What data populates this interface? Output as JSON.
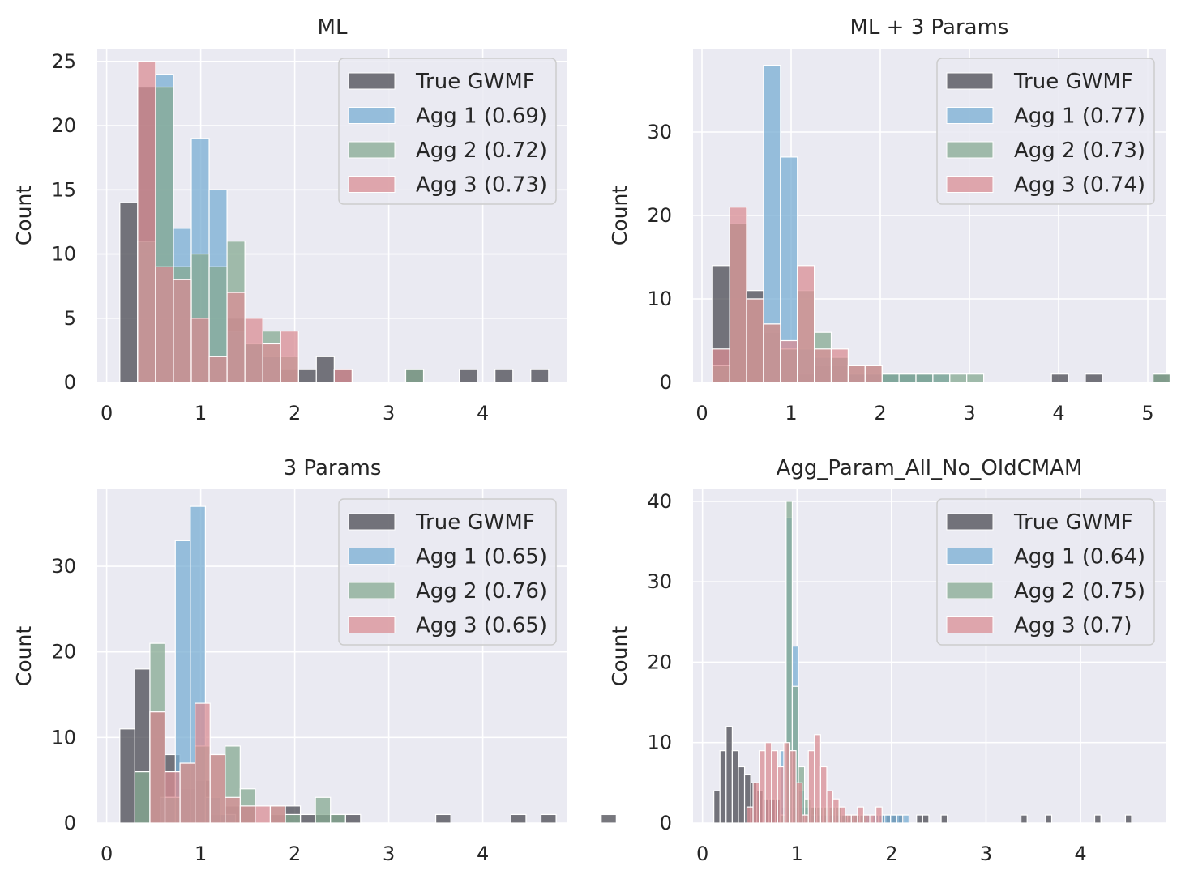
{
  "colors": {
    "plot_bg": "#eaeaf2",
    "grid": "#ffffff",
    "true_gwmf": "#4a4a52",
    "agg1": "#78aed3",
    "agg2": "#86a991",
    "agg3": "#d98e94"
  },
  "chart_data": [
    {
      "type": "bar",
      "title": "ML",
      "ylabel": "Count",
      "xlim": [
        -0.1,
        4.9
      ],
      "ylim": [
        0,
        26
      ],
      "xticks": [
        0,
        1,
        2,
        3,
        4
      ],
      "yticks": [
        0,
        5,
        10,
        15,
        20,
        25
      ],
      "legend_position": "top-right",
      "series": [
        {
          "name": "True GWMF",
          "color_key": "true_gwmf",
          "bin_start": 0.14,
          "bin_width": 0.19,
          "values": [
            14,
            23,
            9,
            8,
            5,
            2,
            5,
            3,
            2,
            1,
            1,
            2,
            1,
            0,
            0,
            0,
            1,
            0,
            0,
            1,
            0,
            1,
            0,
            1
          ]
        },
        {
          "name": "Agg 1 (0.69)",
          "color_key": "agg1",
          "bin_start": 0.33,
          "bin_width": 0.19,
          "values": [
            11,
            24,
            12,
            19,
            15,
            4,
            3,
            2
          ]
        },
        {
          "name": "Agg 2 (0.72)",
          "color_key": "agg2",
          "bin_start": 0.33,
          "bin_width": 0.19,
          "values": [
            11,
            23,
            9,
            10,
            9,
            11,
            3,
            4,
            2,
            0,
            0,
            0,
            0,
            0,
            0,
            1
          ]
        },
        {
          "name": "Agg 3 (0.73)",
          "color_key": "agg3",
          "bin_start": 0.33,
          "bin_width": 0.19,
          "values": [
            25,
            9,
            8,
            5,
            2,
            7,
            5,
            3,
            4,
            0,
            0,
            1
          ]
        }
      ]
    },
    {
      "type": "bar",
      "title": "ML + 3 Params",
      "ylabel": "Count",
      "xlim": [
        -0.1,
        5.2
      ],
      "ylim": [
        0,
        40
      ],
      "xticks": [
        0,
        1,
        2,
        3,
        4,
        5
      ],
      "yticks": [
        0,
        10,
        20,
        30
      ],
      "legend_position": "top-right",
      "series": [
        {
          "name": "True GWMF",
          "color_key": "true_gwmf",
          "bin_start": 0.12,
          "bin_width": 0.19,
          "values": [
            14,
            19,
            11,
            6,
            4,
            1,
            2,
            2,
            1,
            1,
            1,
            1,
            1,
            0,
            0,
            0,
            0,
            0,
            0,
            0,
            1,
            0,
            1,
            0,
            0,
            0,
            1
          ]
        },
        {
          "name": "Agg 1 (0.77)",
          "color_key": "agg1",
          "bin_start": 0.69,
          "bin_width": 0.19,
          "values": [
            38,
            27,
            4,
            3,
            3,
            1,
            1,
            1,
            1,
            1,
            1
          ]
        },
        {
          "name": "Agg 2 (0.73)",
          "color_key": "agg2",
          "bin_start": 0.12,
          "bin_width": 0.19,
          "values": [
            2,
            19,
            10,
            7,
            4,
            11,
            6,
            3,
            2,
            2,
            1,
            1,
            1,
            1,
            1,
            1,
            0,
            0,
            0,
            0,
            0,
            0,
            0,
            0,
            0,
            0,
            1
          ]
        },
        {
          "name": "Agg 3 (0.74)",
          "color_key": "agg3",
          "bin_start": 0.12,
          "bin_width": 0.19,
          "values": [
            4,
            21,
            10,
            7,
            5,
            14,
            4,
            4,
            2,
            2
          ]
        }
      ]
    },
    {
      "type": "bar",
      "title": "3 Params",
      "ylabel": "Count",
      "xlim": [
        -0.1,
        4.9
      ],
      "ylim": [
        0,
        39
      ],
      "xticks": [
        0,
        1,
        2,
        3,
        4
      ],
      "yticks": [
        0,
        10,
        20,
        30
      ],
      "legend_position": "top-right",
      "series": [
        {
          "name": "True GWMF",
          "color_key": "true_gwmf",
          "bin_start": 0.14,
          "bin_width": 0.16,
          "values": [
            11,
            18,
            13,
            8,
            4,
            5,
            1,
            2,
            2,
            0,
            1,
            2,
            1,
            1,
            1,
            1,
            0,
            0,
            0,
            0,
            0,
            1,
            0,
            0,
            0,
            0,
            1,
            0,
            1,
            0,
            0,
            0,
            1
          ]
        },
        {
          "name": "Agg 1 (0.65)",
          "color_key": "agg1",
          "bin_start": 0.57,
          "bin_width": 0.16,
          "values": [
            3,
            33,
            37,
            3,
            1
          ]
        },
        {
          "name": "Agg 2 (0.76)",
          "color_key": "agg2",
          "bin_start": 0.3,
          "bin_width": 0.16,
          "values": [
            6,
            21,
            3,
            7,
            9,
            8,
            9,
            4,
            0,
            2,
            1,
            0,
            3,
            1
          ]
        },
        {
          "name": "Agg 3 (0.65)",
          "color_key": "agg3",
          "bin_start": 0.46,
          "bin_width": 0.16,
          "values": [
            13,
            6,
            7,
            14,
            8,
            3,
            2,
            2,
            2
          ]
        }
      ]
    },
    {
      "type": "bar",
      "title": "Agg_Param_All_No_OldCMAM",
      "ylabel": "Count",
      "xlim": [
        -0.1,
        4.9
      ],
      "ylim": [
        0,
        41.5
      ],
      "xticks": [
        0,
        1,
        2,
        3,
        4
      ],
      "yticks": [
        0,
        10,
        20,
        30,
        40
      ],
      "legend_position": "top-right",
      "series": [
        {
          "name": "True GWMF",
          "color_key": "true_gwmf",
          "bin_start": 0.12,
          "bin_width": 0.065,
          "values": [
            4,
            9,
            12,
            9,
            7,
            6,
            5,
            4,
            3,
            3,
            3,
            2,
            2,
            2,
            2,
            2,
            2,
            1,
            1,
            1,
            1,
            1,
            1,
            1,
            1,
            1,
            1,
            1,
            1,
            1,
            1,
            0,
            0,
            1,
            1,
            0,
            0,
            1,
            0,
            0,
            0,
            0,
            0,
            0,
            0,
            0,
            0,
            0,
            0,
            0,
            1,
            0,
            0,
            0,
            1,
            0,
            0,
            0,
            0,
            0,
            0,
            0,
            1,
            0,
            0,
            0,
            0,
            1
          ]
        },
        {
          "name": "Agg 1 (0.64)",
          "color_key": "agg1",
          "bin_start": 0.82,
          "bin_width": 0.065,
          "values": [
            9,
            38,
            22,
            4,
            2,
            1,
            1,
            1,
            1,
            1,
            1,
            1,
            1,
            1,
            1,
            1,
            1,
            1,
            1,
            1,
            1
          ]
        },
        {
          "name": "Agg 2 (0.75)",
          "color_key": "agg2",
          "bin_start": 0.82,
          "bin_width": 0.065,
          "values": [
            1,
            40,
            17,
            7,
            3,
            2,
            2,
            2,
            2,
            2,
            1,
            1,
            1,
            1
          ]
        },
        {
          "name": "Agg 3 (0.7)",
          "color_key": "agg3",
          "bin_start": 0.47,
          "bin_width": 0.065,
          "values": [
            2,
            5,
            9,
            10,
            9,
            7,
            10,
            9,
            5,
            1,
            9,
            11,
            7,
            4,
            3,
            2,
            1,
            1,
            2,
            1,
            1,
            2
          ]
        }
      ]
    }
  ]
}
